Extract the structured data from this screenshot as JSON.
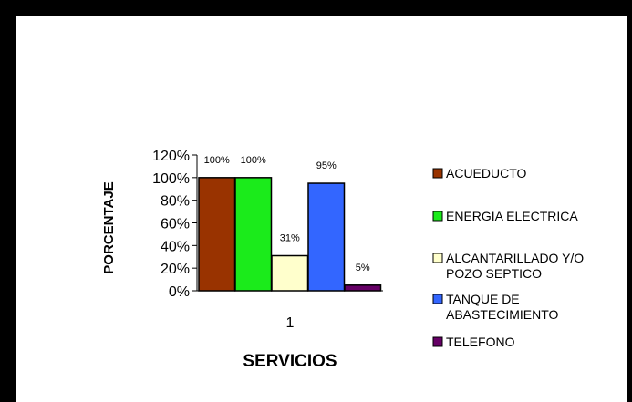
{
  "chart_data": {
    "type": "bar",
    "categories": [
      "1"
    ],
    "series": [
      {
        "name": "ACUEDUCTO",
        "values": [
          100
        ],
        "color": "#993300",
        "label_lines": [
          "ACUEDUCTO"
        ]
      },
      {
        "name": "ENERGIA ELECTRICA",
        "values": [
          100
        ],
        "color": "#1BEB1B",
        "label_lines": [
          "ENERGIA ELECTRICA"
        ]
      },
      {
        "name": "ALCANTARILLADO Y/O POZO SEPTICO",
        "values": [
          31
        ],
        "color": "#FFFFCC",
        "label_lines": [
          "ALCANTARILLADO Y/O",
          "POZO SEPTICO"
        ]
      },
      {
        "name": "TANQUE DE ABASTECIMIENTO",
        "values": [
          95
        ],
        "color": "#3366FF",
        "label_lines": [
          "TANQUE DE",
          "ABASTECIMIENTO"
        ]
      },
      {
        "name": "TELEFONO",
        "values": [
          5
        ],
        "color": "#660066",
        "label_lines": [
          "TELEFONO"
        ]
      }
    ],
    "data_labels": [
      "100%",
      "100%",
      "31%",
      "95%",
      "5%"
    ],
    "yticks": [
      "0%",
      "20%",
      "40%",
      "60%",
      "80%",
      "100%",
      "120%"
    ],
    "ylim": [
      0,
      120
    ],
    "xlabel": "SERVICIOS",
    "ylabel": "PORCENTAJE",
    "title": "",
    "grid": false,
    "legend_position": "right"
  }
}
